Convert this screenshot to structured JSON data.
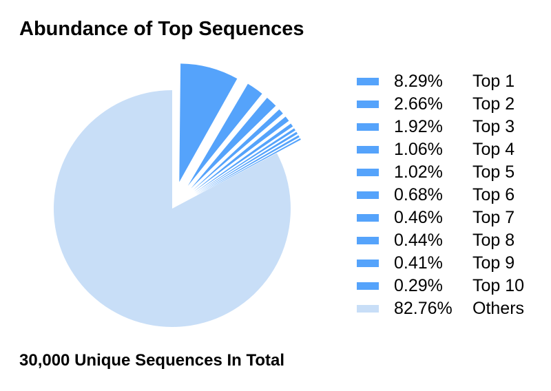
{
  "chart_data": {
    "type": "pie",
    "title": "Abundance of Top Sequences",
    "subtitle": "30,000 Unique Sequences In Total",
    "categories": [
      "Top 1",
      "Top 2",
      "Top 3",
      "Top 4",
      "Top 5",
      "Top 6",
      "Top 7",
      "Top 8",
      "Top 9",
      "Top 10",
      "Others"
    ],
    "values": [
      8.29,
      2.66,
      1.92,
      1.06,
      1.02,
      0.68,
      0.46,
      0.44,
      0.41,
      0.29,
      82.76
    ],
    "value_labels": [
      "8.29%",
      "2.66%",
      "1.92%",
      "1.06%",
      "1.02%",
      "0.68%",
      "0.46%",
      "0.44%",
      "0.41%",
      "0.29%",
      "82.76%"
    ],
    "exploded": [
      "Top 1",
      "Top 2",
      "Top 3",
      "Top 4",
      "Top 5",
      "Top 6",
      "Top 7",
      "Top 8",
      "Top 9",
      "Top 10"
    ],
    "legend_position": "right",
    "colors": {
      "top": "#55a3fb",
      "others": "#c8def7"
    }
  }
}
